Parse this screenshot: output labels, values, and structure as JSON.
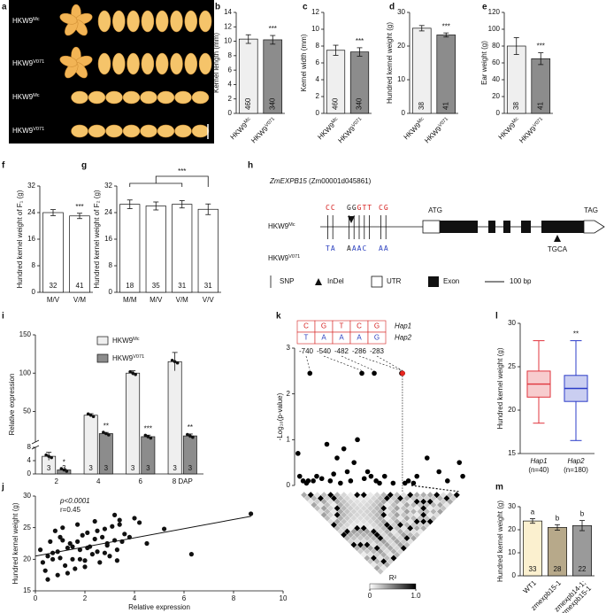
{
  "panel_labels": [
    "a",
    "b",
    "c",
    "d",
    "e",
    "f",
    "g",
    "h",
    "i",
    "j",
    "k",
    "l",
    "m"
  ],
  "panel_a": {
    "labels": [
      {
        "base": "HKW9",
        "sup": "Mc"
      },
      {
        "base": "HKW9",
        "sup": "V071"
      },
      {
        "base": "HKW9",
        "sup": "Mc"
      },
      {
        "base": "HKW9",
        "sup": "V071"
      }
    ]
  },
  "gene_diagram": {
    "gene": "ZmEXPB15",
    "gene_id": "(Zm00001d045861)",
    "rows": [
      {
        "name": {
          "base": "HKW9",
          "sup": "Mc"
        },
        "snps": [
          [
            {
              "text": "CC",
              "color": "#d6201f"
            }
          ],
          [
            {
              "text": "GG",
              "color": "#222222"
            },
            {
              "text": "GTT",
              "color": "#d6201f"
            }
          ],
          [
            {
              "text": "CG",
              "color": "#d6201f"
            }
          ]
        ]
      },
      {
        "name": {
          "base": "HKW9",
          "sup": "V071"
        },
        "snps": [
          [
            {
              "text": "TA",
              "color": "#2a3fbf"
            }
          ],
          [
            {
              "text": "A",
              "color": "#222222"
            },
            {
              "text": "AAC",
              "color": "#2a3fbf"
            }
          ],
          [
            {
              "text": "AA",
              "color": "#2a3fbf"
            }
          ]
        ]
      }
    ],
    "start_codon": "ATG",
    "stop_codon": "TAG",
    "indel": "TGCA",
    "legend": [
      "SNP",
      "InDel",
      "UTR",
      "Exon"
    ],
    "scale": "100 bp"
  },
  "chart_data": [
    {
      "type": "bar",
      "ylabel": "Kernel length (mm)",
      "categories": [
        {
          "base": "HKW9",
          "sup": "Mc"
        },
        {
          "base": "HKW9",
          "sup": "V071"
        }
      ],
      "values": [
        10.3,
        10.2
      ],
      "errors": [
        0.6,
        0.6
      ],
      "n_labels": [
        460,
        340
      ],
      "colors": [
        "#efefef",
        "#8c8c8c"
      ],
      "ylim": [
        0,
        14
      ],
      "yticks": [
        0,
        2,
        4,
        6,
        8,
        10,
        12,
        14
      ],
      "annotation": "***"
    },
    {
      "type": "bar",
      "ylabel": "Kernel width (mm)",
      "categories": [
        {
          "base": "HKW9",
          "sup": "Mc"
        },
        {
          "base": "HKW9",
          "sup": "V071"
        }
      ],
      "values": [
        7.5,
        7.3
      ],
      "errors": [
        0.6,
        0.5
      ],
      "n_labels": [
        460,
        340
      ],
      "colors": [
        "#efefef",
        "#8c8c8c"
      ],
      "ylim": [
        0,
        12
      ],
      "yticks": [
        0,
        2,
        4,
        6,
        8,
        10,
        12
      ],
      "annotation": "***"
    },
    {
      "type": "bar",
      "ylabel": "Hundred kernel weight (g)",
      "categories": [
        {
          "base": "HKW9",
          "sup": "Mc"
        },
        {
          "base": "HKW9",
          "sup": "V071"
        }
      ],
      "values": [
        25.3,
        23.3
      ],
      "errors": [
        0.8,
        0.6
      ],
      "n_labels": [
        38,
        41
      ],
      "colors": [
        "#efefef",
        "#8c8c8c"
      ],
      "ylim": [
        0,
        30
      ],
      "yticks": [
        0,
        10,
        20,
        30
      ],
      "annotation": "***"
    },
    {
      "type": "bar",
      "ylabel": "Ear weight (g)",
      "categories": [
        {
          "base": "HKW9",
          "sup": "Mc"
        },
        {
          "base": "HKW9",
          "sup": "V071"
        }
      ],
      "values": [
        80,
        65
      ],
      "errors": [
        10,
        7
      ],
      "n_labels": [
        38,
        41
      ],
      "colors": [
        "#efefef",
        "#8c8c8c"
      ],
      "ylim": [
        0,
        120
      ],
      "yticks": [
        0,
        20,
        40,
        60,
        80,
        100,
        120
      ],
      "annotation": "***"
    },
    {
      "type": "bar",
      "ylabel": "Hundred kernel weight of F₁ (g)",
      "categories": [
        "M/V",
        "V/M"
      ],
      "values": [
        24,
        23
      ],
      "errors": [
        0.9,
        0.8
      ],
      "n_labels": [
        32,
        41
      ],
      "colors": [
        "#ffffff",
        "#ffffff"
      ],
      "ylim": [
        0,
        32
      ],
      "yticks": [
        0,
        8,
        16,
        24,
        32
      ],
      "annotation": "***"
    },
    {
      "type": "bar",
      "ylabel": "Hundred kernel weight of F₂ (g)",
      "categories": [
        "M/M",
        "M/V",
        "V/M",
        "V/V"
      ],
      "values": [
        26.5,
        26,
        26.5,
        25
      ],
      "errors": [
        1.3,
        1.2,
        1.1,
        1.6
      ],
      "n_labels": [
        18,
        35,
        31,
        31
      ],
      "colors": [
        "#ffffff",
        "#ffffff",
        "#ffffff",
        "#ffffff"
      ],
      "ylim": [
        0,
        32
      ],
      "yticks": [
        0,
        8,
        16,
        24,
        32
      ],
      "annotation": "***",
      "bracket": true
    },
    {
      "type": "grouped_bar",
      "ylabel": "Relative expression",
      "categories": [
        "2",
        "4",
        "6",
        "8 DAP"
      ],
      "series": [
        {
          "name": {
            "base": "HKW9",
            "sup": "Mc"
          },
          "color": "#efefef",
          "values": [
            5.3,
            45,
            100,
            115
          ],
          "errors": [
            1.2,
            2,
            3,
            12
          ],
          "n_labels": [
            3,
            3,
            3,
            3
          ]
        },
        {
          "name": {
            "base": "HKW9",
            "sup": "V071"
          },
          "color": "#8c8c8c",
          "values": [
            1.2,
            21,
            17,
            18
          ],
          "errors": [
            0.3,
            1.5,
            2,
            2.5
          ],
          "n_labels": [
            3,
            3,
            3,
            3
          ]
        }
      ],
      "ylim": [
        0,
        150
      ],
      "ybreak": [
        8,
        10
      ],
      "yticks": [
        0,
        4,
        8,
        50,
        100,
        150
      ],
      "annotations": [
        "*",
        "**",
        "***",
        "**"
      ]
    },
    {
      "type": "scatter",
      "xlabel": "Relative expression",
      "ylabel": "Hundred kernel weight (g)",
      "x": [
        0.2,
        0.3,
        0.4,
        0.5,
        0.6,
        0.7,
        0.8,
        0.9,
        1.0,
        1.1,
        1.2,
        1.3,
        1.4,
        1.5,
        1.6,
        1.7,
        1.8,
        1.9,
        2.0,
        2.1,
        2.2,
        2.3,
        2.4,
        2.5,
        2.6,
        2.7,
        2.8,
        2.9,
        3.0,
        3.1,
        3.2,
        3.3,
        3.4,
        3.5,
        3.6,
        3.8,
        4.0,
        4.2,
        0.5,
        0.9,
        1.3,
        1.7,
        2.1,
        2.5,
        2.9,
        3.3,
        0.7,
        1.1,
        1.5,
        2.0,
        2.4,
        2.8,
        3.2,
        4.5,
        5.2,
        6.3,
        8.7,
        1.0,
        1.8,
        3.4
      ],
      "y": [
        21.5,
        19.5,
        18.2,
        20.5,
        22.8,
        21.0,
        24.5,
        17.5,
        20.2,
        23.0,
        19.0,
        21.8,
        22.5,
        20.0,
        18.5,
        25.5,
        21.5,
        23.8,
        19.8,
        24.2,
        22.0,
        20.8,
        26.0,
        21.2,
        19.5,
        23.5,
        24.8,
        22.2,
        20.5,
        25.2,
        23.0,
        21.5,
        26.2,
        22.8,
        24.0,
        23.5,
        26.5,
        25.8,
        16.8,
        21.2,
        17.8,
        22.8,
        21.8,
        24.5,
        22.5,
        19.8,
        20.0,
        25.0,
        22.0,
        18.8,
        23.2,
        21.0,
        27.0,
        22.5,
        24.8,
        20.8,
        27.2,
        23.5,
        20.0,
        25.5
      ],
      "fit": {
        "x": [
          0,
          8.7
        ],
        "y": [
          20.5,
          26.8
        ]
      },
      "annotations": [
        "p<0.0001",
        "r=0.45"
      ],
      "xlim": [
        0,
        10
      ],
      "xticks": [
        0,
        2,
        4,
        6,
        8,
        10
      ],
      "ylim": [
        15,
        30
      ],
      "yticks": [
        15,
        20,
        25,
        30
      ]
    },
    {
      "type": "association",
      "ylabel": "-Log₁₀(p-value)",
      "series": [
        {
          "color": "#000000",
          "x": [
            2,
            3,
            5,
            7,
            8,
            9,
            11,
            13,
            16,
            19,
            21,
            23,
            25,
            27,
            29,
            31,
            33,
            35,
            37,
            39.6,
            41,
            43,
            45,
            46.9,
            48,
            50,
            53,
            58,
            63,
            65,
            67,
            70,
            72,
            78,
            85,
            90,
            97,
            99
          ],
          "y": [
            0.7,
            0.2,
            0.1,
            0.05,
            0.1,
            2.45,
            0.1,
            0.2,
            0.15,
            0.9,
            0.1,
            0.25,
            0.6,
            0.05,
            0.8,
            0.3,
            0.1,
            0.5,
            1.0,
            2.45,
            0.15,
            0.3,
            0.2,
            2.45,
            0.1,
            0.05,
            0.2,
            0.05,
            2.45,
            0.05,
            0.1,
            0.05,
            0.2,
            0.6,
            0.3,
            0.1,
            0.5,
            0.2
          ]
        },
        {
          "color": "#e8261f",
          "x": [
            63.5
          ],
          "y": [
            2.45
          ]
        }
      ],
      "xlim": [
        0,
        100
      ],
      "ylim": [
        0,
        3
      ],
      "yticks": [
        0,
        1,
        2,
        3
      ],
      "haplotypes": [
        {
          "name": "Hap1",
          "alleles": [
            "C",
            "G",
            "T",
            "C",
            "G"
          ]
        },
        {
          "name": "Hap2",
          "alleles": [
            "T",
            "A",
            "A",
            "A",
            "G"
          ]
        }
      ],
      "positions": [
        -740,
        -540,
        -482,
        -286,
        -283
      ],
      "ld_legend": {
        "title": "R²",
        "ticks": [
          0,
          {
            "value": 1,
            "label": "1.0"
          }
        ]
      }
    },
    {
      "type": "box",
      "ylabel": "Hundred kernel weight (g)",
      "categories": [
        "Hap1",
        "Hap2"
      ],
      "n_labels": [
        "(n=40)",
        "(n=180)"
      ],
      "boxes": [
        {
          "min": 18.5,
          "q1": 21.5,
          "median": 23,
          "q3": 24.5,
          "max": 28
        },
        {
          "min": 16.5,
          "q1": 21,
          "median": 22.5,
          "q3": 24,
          "max": 28
        }
      ],
      "colors": [
        "#e0343c",
        "#2c3cc8"
      ],
      "ylim": [
        15,
        30
      ],
      "yticks": [
        15,
        20,
        25,
        30
      ],
      "annotation": "**"
    },
    {
      "type": "bar",
      "ylabel": "Hundred kernel weight (g)",
      "categories": [
        "WT1",
        "zmexpb15-1",
        [
          "zmexpb14-1;",
          "zmexpb15-1"
        ]
      ],
      "values": [
        23.8,
        21,
        21.8
      ],
      "errors": [
        1.0,
        1.2,
        2.2
      ],
      "n_labels": [
        33,
        28,
        22
      ],
      "colors": [
        "#fbf0cf",
        "#b7a98a",
        "#9a9a9a"
      ],
      "letters": [
        "a",
        "b",
        "b"
      ],
      "ylim": [
        0,
        30
      ],
      "yticks": [
        0,
        10,
        20,
        30
      ]
    }
  ]
}
